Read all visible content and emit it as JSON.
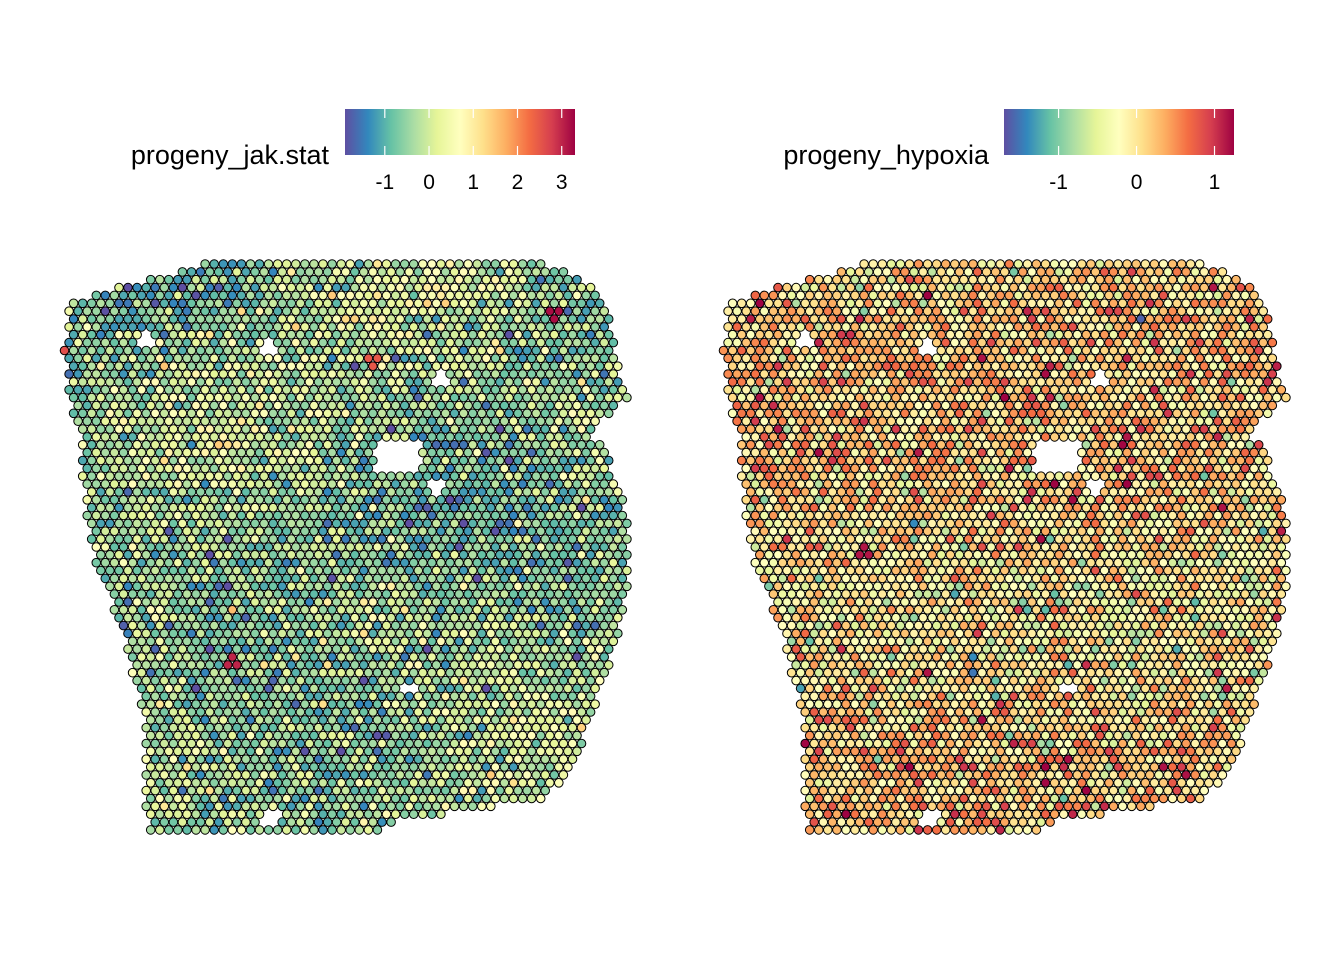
{
  "palette": [
    "#5E4FA2",
    "#3288BD",
    "#66C2A5",
    "#ABDDA4",
    "#E6F598",
    "#FFFFBF",
    "#FEE08B",
    "#FDAE61",
    "#F46D43",
    "#D53E4F",
    "#9E0142"
  ],
  "chart_data": [
    {
      "type": "scatter",
      "subtype": "spatial spot map",
      "legend": {
        "title": "progeny_jak.stat",
        "placement": "top",
        "range": [
          -1.9,
          3.3
        ],
        "ticks": [
          -1,
          0,
          1,
          2,
          3
        ],
        "tick_labels": [
          "-1",
          "0",
          "1",
          "2",
          "3"
        ]
      },
      "value_distribution": {
        "mean": -0.3,
        "sd": 0.55
      },
      "hot_spots": [
        {
          "value": 3.2
        },
        {
          "value": 3.0
        },
        {
          "value": 2.6
        },
        {
          "value": 2.5
        }
      ]
    },
    {
      "type": "scatter",
      "subtype": "spatial spot map",
      "legend": {
        "title": "progeny_hypoxia",
        "placement": "top",
        "range": [
          -1.7,
          1.25
        ],
        "ticks": [
          -1,
          0,
          1
        ],
        "tick_labels": [
          "-1",
          "0",
          "1"
        ]
      },
      "value_distribution": {
        "mean": 0.05,
        "sd": 0.42
      },
      "hot_spots": [
        {
          "value": 1.2
        },
        {
          "value": 1.15
        },
        {
          "value": -1.6
        }
      ]
    }
  ]
}
